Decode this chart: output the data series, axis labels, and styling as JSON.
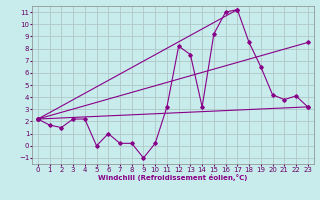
{
  "xlabel": "Windchill (Refroidissement éolien,°C)",
  "bg_color": "#c8ecec",
  "grid_color": "#b0c8c8",
  "line_color": "#880088",
  "xlim": [
    -0.5,
    23.5
  ],
  "ylim": [
    -1.5,
    11.5
  ],
  "xticks": [
    0,
    1,
    2,
    3,
    4,
    5,
    6,
    7,
    8,
    9,
    10,
    11,
    12,
    13,
    14,
    15,
    16,
    17,
    18,
    19,
    20,
    21,
    22,
    23
  ],
  "yticks": [
    -1,
    0,
    1,
    2,
    3,
    4,
    5,
    6,
    7,
    8,
    9,
    10,
    11
  ],
  "main_x": [
    0,
    1,
    2,
    3,
    4,
    5,
    6,
    7,
    8,
    9,
    10,
    11,
    12,
    13,
    14,
    15,
    16,
    17,
    18,
    19,
    20,
    21,
    22,
    23
  ],
  "main_y": [
    2.2,
    1.7,
    1.5,
    2.2,
    2.2,
    0.0,
    1.0,
    0.2,
    0.2,
    -1.0,
    0.2,
    3.2,
    8.2,
    7.5,
    3.2,
    9.2,
    11.0,
    11.2,
    8.5,
    6.5,
    4.2,
    3.8,
    4.1,
    3.2
  ],
  "fan_lines": [
    {
      "x": [
        0,
        23
      ],
      "y": [
        2.2,
        3.2
      ]
    },
    {
      "x": [
        0,
        17
      ],
      "y": [
        2.2,
        11.2
      ]
    },
    {
      "x": [
        0,
        23
      ],
      "y": [
        2.2,
        8.5
      ]
    }
  ]
}
